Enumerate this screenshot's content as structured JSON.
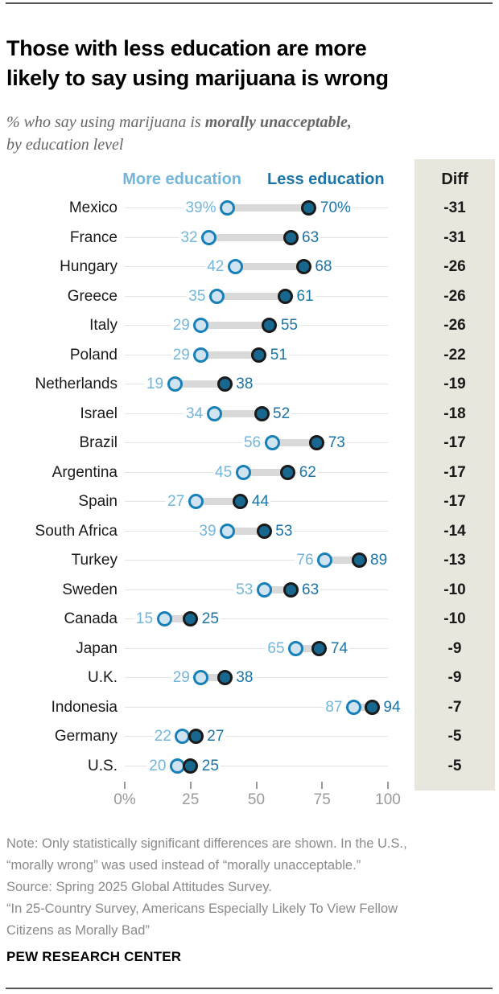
{
  "header": {
    "title_lines": [
      "Those with less education are more",
      "likely to say using marijuana is wrong"
    ]
  },
  "subtitle": {
    "prefix": "% who say using marijuana is ",
    "bold": "morally unacceptable,",
    "line2": "by education level"
  },
  "legend": {
    "more": "More education",
    "less": "Less education"
  },
  "diff_header": "Diff",
  "chart_data": {
    "type": "dumbbell",
    "title": "Those with less education are more likely to say using marijuana is wrong",
    "subtitle": "% who say using marijuana is morally unacceptable, by education level",
    "series_labels": {
      "more": "More education",
      "less": "Less education"
    },
    "xlim": [
      0,
      100
    ],
    "x_ticks": [
      {
        "value": 0,
        "label": "0%"
      },
      {
        "value": 25,
        "label": "25"
      },
      {
        "value": 50,
        "label": "50"
      },
      {
        "value": 75,
        "label": "75"
      },
      {
        "value": 100,
        "label": "100"
      }
    ],
    "rows": [
      {
        "country": "Mexico",
        "more": 39,
        "less": 70,
        "more_label": "39%",
        "less_label": "70%",
        "diff": "-31"
      },
      {
        "country": "France",
        "more": 32,
        "less": 63,
        "more_label": "32",
        "less_label": "63",
        "diff": "-31"
      },
      {
        "country": "Hungary",
        "more": 42,
        "less": 68,
        "more_label": "42",
        "less_label": "68",
        "diff": "-26"
      },
      {
        "country": "Greece",
        "more": 35,
        "less": 61,
        "more_label": "35",
        "less_label": "61",
        "diff": "-26"
      },
      {
        "country": "Italy",
        "more": 29,
        "less": 55,
        "more_label": "29",
        "less_label": "55",
        "diff": "-26"
      },
      {
        "country": "Poland",
        "more": 29,
        "less": 51,
        "more_label": "29",
        "less_label": "51",
        "diff": "-22"
      },
      {
        "country": "Netherlands",
        "more": 19,
        "less": 38,
        "more_label": "19",
        "less_label": "38",
        "diff": "-19"
      },
      {
        "country": "Israel",
        "more": 34,
        "less": 52,
        "more_label": "34",
        "less_label": "52",
        "diff": "-18"
      },
      {
        "country": "Brazil",
        "more": 56,
        "less": 73,
        "more_label": "56",
        "less_label": "73",
        "diff": "-17"
      },
      {
        "country": "Argentina",
        "more": 45,
        "less": 62,
        "more_label": "45",
        "less_label": "62",
        "diff": "-17"
      },
      {
        "country": "Spain",
        "more": 27,
        "less": 44,
        "more_label": "27",
        "less_label": "44",
        "diff": "-17"
      },
      {
        "country": "South Africa",
        "more": 39,
        "less": 53,
        "more_label": "39",
        "less_label": "53",
        "diff": "-14"
      },
      {
        "country": "Turkey",
        "more": 76,
        "less": 89,
        "more_label": "76",
        "less_label": "89",
        "diff": "-13"
      },
      {
        "country": "Sweden",
        "more": 53,
        "less": 63,
        "more_label": "53",
        "less_label": "63",
        "diff": "-10"
      },
      {
        "country": "Canada",
        "more": 15,
        "less": 25,
        "more_label": "15",
        "less_label": "25",
        "diff": "-10"
      },
      {
        "country": "Japan",
        "more": 65,
        "less": 74,
        "more_label": "65",
        "less_label": "74",
        "diff": "-9"
      },
      {
        "country": "U.K.",
        "more": 29,
        "less": 38,
        "more_label": "29",
        "less_label": "38",
        "diff": "-9"
      },
      {
        "country": "Indonesia",
        "more": 87,
        "less": 94,
        "more_label": "87",
        "less_label": "94",
        "diff": "-7"
      },
      {
        "country": "Germany",
        "more": 22,
        "less": 27,
        "more_label": "22",
        "less_label": "27",
        "diff": "-5"
      },
      {
        "country": "U.S.",
        "more": 20,
        "less": 25,
        "more_label": "20",
        "less_label": "25",
        "diff": "-5"
      }
    ],
    "colors": {
      "more_text": "#73b6dc",
      "less_text": "#1a74a8",
      "more_dot_fill": "#cfe3f0",
      "more_dot_stroke": "#1880b8",
      "less_dot_fill": "#17678f",
      "less_dot_stroke": "#1a1a1a",
      "connector": "#d9d9d9",
      "diff_bg": "#e9e7dd",
      "diff_text": "#1a1a1a",
      "gridline": "#e3e3e3",
      "axis": "#9a9a9a"
    },
    "legend_position": "top"
  },
  "notes": {
    "lines": [
      "Note: Only statistically significant differences are shown. In the U.S.,",
      "“morally wrong” was used instead of “morally unacceptable.”",
      "Source: Spring 2025 Global Attitudes Survey.",
      "“In 25-Country Survey, Americans Especially Likely To View Fellow",
      "Citizens as Morally Bad”"
    ]
  },
  "footer": {
    "brand": "PEW RESEARCH CENTER"
  }
}
